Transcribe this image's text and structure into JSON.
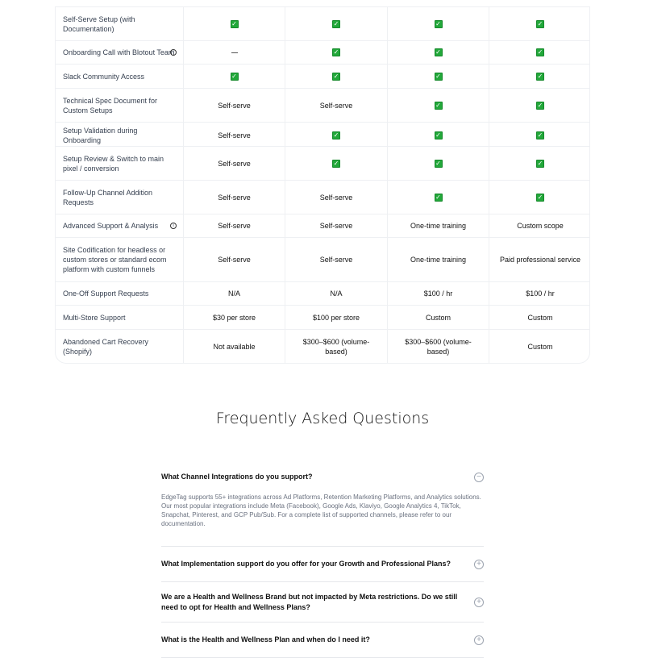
{
  "table": {
    "rows": [
      {
        "label": "Self-Serve Setup (with Documentation)",
        "cells": [
          "check",
          "check",
          "check",
          "check"
        ]
      },
      {
        "label": "Onboarding Call with Blotout Team",
        "info": true,
        "cells": [
          "dash",
          "check",
          "check",
          "check"
        ]
      },
      {
        "label": "Slack Community Access",
        "cells": [
          "check",
          "check",
          "check",
          "check"
        ]
      },
      {
        "label": "Technical Spec Document for Custom Setups",
        "cells": [
          "Self-serve",
          "Self-serve",
          "check",
          "check"
        ]
      },
      {
        "label": "Setup Validation during Onboarding",
        "cells": [
          "Self-serve",
          "check",
          "check",
          "check"
        ]
      },
      {
        "label": "Setup Review & Switch to main pixel / conversion",
        "cells": [
          "Self-serve",
          "check",
          "check",
          "check"
        ]
      },
      {
        "label": "Follow-Up Channel Addition Requests",
        "cells": [
          "Self-serve",
          "Self-serve",
          "check",
          "check"
        ]
      },
      {
        "label": "Advanced Support & Analysis",
        "info": true,
        "cells": [
          "Self-serve",
          "Self-serve",
          "One-time training",
          "Custom scope"
        ]
      },
      {
        "label": "Site Codification for headless or custom stores or standard ecom platform with custom funnels",
        "cells": [
          "Self-serve",
          "Self-serve",
          "One-time training",
          "Paid professional service"
        ]
      },
      {
        "label": "One-Off Support Requests",
        "cells": [
          "N/A",
          "N/A",
          "$100 / hr",
          "$100 / hr"
        ]
      },
      {
        "label": "Multi-Store Support",
        "cells": [
          "$30 per store",
          "$100 per store",
          "Custom",
          "Custom"
        ]
      },
      {
        "label": "Abandoned Cart Recovery (Shopify)",
        "cells": [
          "Not available",
          "$300–$600 (volume-based)",
          "$300–$600 (volume-based)",
          "Custom"
        ]
      }
    ],
    "heights": [
      42,
      29,
      30,
      42,
      30,
      42,
      42,
      29,
      55,
      29,
      30,
      42
    ]
  },
  "faq": {
    "title": "Frequently Asked Questions",
    "items": [
      {
        "q": "What Channel Integrations do you support?",
        "open": true,
        "a": "EdgeTag supports 55+ integrations across Ad Platforms, Retention Marketing Platforms, and Analytics solutions. Our most popular integrations include Meta (Facebook), Google Ads, Klaviyo, Google Analytics 4, TikTok, Snapchat, Pinterest, and GCP Pub/Sub. For a complete list of supported channels, please refer to our documentation."
      },
      {
        "q": "What Implementation support do you offer for your Growth and Professional Plans?",
        "open": false
      },
      {
        "q": "We are a Health and Wellness Brand but not impacted by Meta restrictions. Do we still need to opt for Health and Wellness Plans?",
        "open": false
      },
      {
        "q": "What is the Health and Wellness Plan and when do I need it?",
        "open": false
      }
    ]
  },
  "colors": {
    "check": "#22a83a"
  }
}
